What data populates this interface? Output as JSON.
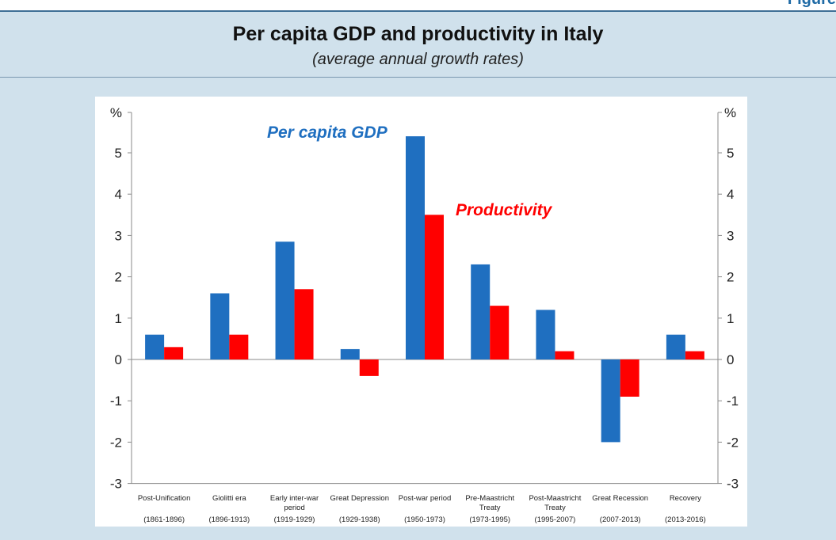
{
  "figure_label": "Figure",
  "header": {
    "title": "Per capita GDP and productivity in Italy",
    "subtitle": "(average annual growth rates)"
  },
  "colors": {
    "gdp": "#1f6fc0",
    "productivity": "#ff0000",
    "panel": "#d0e1ec",
    "accent_text": "#1f6aa5"
  },
  "chart_data": {
    "type": "bar",
    "title": "Per capita GDP and productivity in Italy",
    "subtitle": "(average annual growth rates)",
    "ylabel_left": "%",
    "ylabel_right": "%",
    "ylim": [
      -3,
      6
    ],
    "yticks": [
      -3,
      -2,
      -1,
      0,
      1,
      2,
      3,
      4,
      5
    ],
    "categories": [
      {
        "name": [
          "Post-Unification"
        ],
        "period": "(1861-1896)"
      },
      {
        "name": [
          "Giolitti era"
        ],
        "period": "(1896-1913)"
      },
      {
        "name": [
          "Early inter-war",
          "period"
        ],
        "period": "(1919-1929)"
      },
      {
        "name": [
          "Great Depression"
        ],
        "period": "(1929-1938)"
      },
      {
        "name": [
          "Post-war period"
        ],
        "period": "(1950-1973)"
      },
      {
        "name": [
          "Pre-Maastricht",
          "Treaty"
        ],
        "period": "(1973-1995)"
      },
      {
        "name": [
          "Post-Maastricht",
          "Treaty"
        ],
        "period": "(1995-2007)"
      },
      {
        "name": [
          "Great Recession"
        ],
        "period": "(2007-2013)"
      },
      {
        "name": [
          "Recovery"
        ],
        "period": "(2013-2016)"
      }
    ],
    "series": [
      {
        "name": "Per capita GDP",
        "color": "#1f6fc0",
        "values": [
          0.6,
          1.6,
          2.85,
          0.25,
          5.4,
          2.3,
          1.2,
          -2.0,
          0.6
        ]
      },
      {
        "name": "Productivity",
        "color": "#ff0000",
        "values": [
          0.3,
          0.6,
          1.7,
          -0.4,
          3.5,
          1.3,
          0.2,
          -0.9,
          0.2
        ]
      }
    ],
    "legend": "inline labels",
    "grid": false
  }
}
